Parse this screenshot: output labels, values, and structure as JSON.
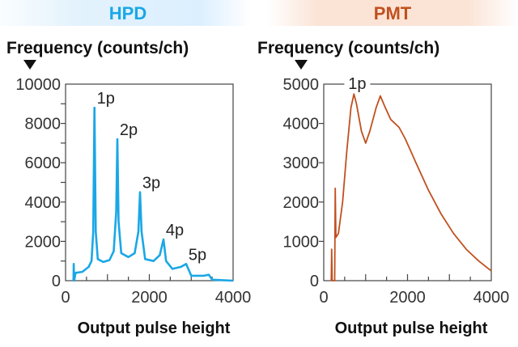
{
  "chart_data": [
    {
      "type": "line",
      "title": "HPD",
      "ylabel": "Frequency (counts/ch)",
      "xlabel": "Output pulse height",
      "xlim": [
        0,
        4000
      ],
      "ylim": [
        0,
        10000
      ],
      "xticks": [
        "0",
        "2000",
        "4000"
      ],
      "yticks": [
        "0",
        "2000",
        "4000",
        "6000",
        "8000",
        "10000"
      ],
      "grid": false,
      "color": "#1aa7e6",
      "title_color": "#1aa7e6",
      "annotations": [
        {
          "text": "1p",
          "x": 690,
          "y": 8800
        },
        {
          "text": "2p",
          "x": 1237,
          "y": 7200
        },
        {
          "text": "3p",
          "x": 1778,
          "y": 4500
        },
        {
          "text": "4p",
          "x": 2338,
          "y": 2100
        },
        {
          "text": "5p",
          "x": 2880,
          "y": 850
        }
      ],
      "series": [
        {
          "x": [
            190,
            195,
            205,
            240,
            400,
            550,
            620,
            660,
            690,
            720,
            770,
            900,
            1050,
            1150,
            1210,
            1237,
            1265,
            1330,
            1500,
            1650,
            1740,
            1778,
            1815,
            1900,
            2100,
            2250,
            2338,
            2400,
            2550,
            2750,
            2880,
            2950,
            3000,
            3300,
            3420,
            3500,
            4000
          ],
          "y": [
            0,
            850,
            0,
            400,
            450,
            700,
            1000,
            2500,
            8800,
            2500,
            1100,
            950,
            1050,
            1500,
            3500,
            7200,
            3000,
            1400,
            1200,
            1400,
            2500,
            4500,
            2500,
            1100,
            1000,
            1300,
            2100,
            1000,
            600,
            700,
            850,
            500,
            250,
            250,
            300,
            50,
            0
          ]
        }
      ]
    },
    {
      "type": "line",
      "title": "PMT",
      "ylabel": "Frequency (counts/ch)",
      "xlabel": "Output pulse height",
      "xlim": [
        0,
        4000
      ],
      "ylim": [
        0,
        5000
      ],
      "xticks": [
        "0",
        "2000",
        "4000"
      ],
      "yticks": [
        "0",
        "1000",
        "2000",
        "3000",
        "4000",
        "5000"
      ],
      "grid": false,
      "color": "#c0501f",
      "title_color": "#c0501f",
      "annotations": [
        {
          "text": "1p",
          "x": 800,
          "y": 5000
        }
      ],
      "series": [
        {
          "x": [
            180,
            190,
            200,
            260,
            275,
            290,
            350,
            450,
            550,
            650,
            720,
            780,
            900,
            1000,
            1100,
            1250,
            1350,
            1450,
            1600,
            1800,
            1950,
            2200,
            2500,
            2800,
            3100,
            3400,
            3700,
            4000
          ],
          "y": [
            0,
            800,
            0,
            0,
            2350,
            1100,
            1200,
            2000,
            3300,
            4400,
            4750,
            4500,
            3800,
            3500,
            3800,
            4400,
            4700,
            4450,
            4100,
            3900,
            3600,
            3000,
            2300,
            1700,
            1200,
            800,
            500,
            250
          ]
        }
      ]
    }
  ]
}
